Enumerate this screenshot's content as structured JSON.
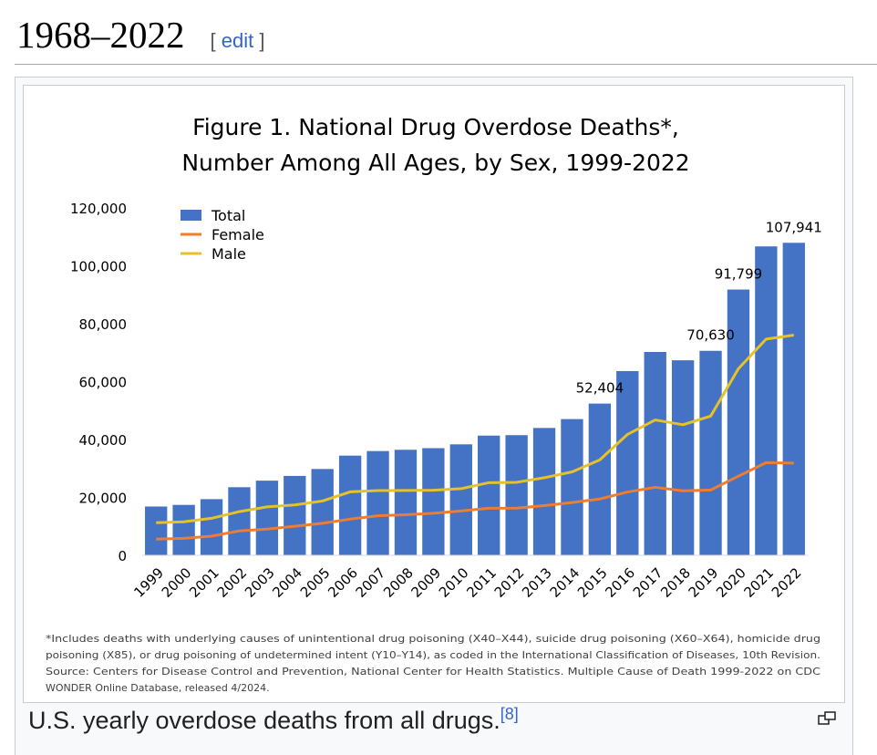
{
  "section": {
    "title": "1968–2022",
    "edit_open": "[ ",
    "edit_label": "edit",
    "edit_close": " ]"
  },
  "figure": {
    "caption": "U.S. yearly overdose deaths from all drugs.",
    "citation": "[8]",
    "magnify_icon": "magnify-clip-icon"
  },
  "chart_data": {
    "type": "bar",
    "title_line1": "Figure 1. National Drug Overdose Deaths*,",
    "title_line2": "Number Among All Ages, by Sex, 1999-2022",
    "categories": [
      "1999",
      "2000",
      "2001",
      "2002",
      "2003",
      "2004",
      "2005",
      "2006",
      "2007",
      "2008",
      "2009",
      "2010",
      "2011",
      "2012",
      "2013",
      "2014",
      "2015",
      "2016",
      "2017",
      "2018",
      "2019",
      "2020",
      "2021",
      "2022"
    ],
    "series": [
      {
        "name": "Total",
        "type": "bar",
        "color": "#4472c4",
        "values": [
          16849,
          17415,
          19394,
          23518,
          25785,
          27424,
          29813,
          34425,
          36010,
          36450,
          37004,
          38329,
          41340,
          41502,
          43982,
          47055,
          52404,
          63632,
          70237,
          67367,
          70630,
          91799,
          106699,
          107941
        ]
      },
      {
        "name": "Female",
        "type": "line",
        "color": "#ed7d31",
        "values": [
          5591,
          5849,
          6613,
          8431,
          9051,
          10035,
          11053,
          12512,
          13662,
          14033,
          14525,
          15315,
          16246,
          16288,
          17181,
          18243,
          19447,
          21868,
          23484,
          22274,
          22552,
          27347,
          32018,
          31869
        ]
      },
      {
        "name": "Male",
        "type": "line",
        "color": "#e6c229",
        "values": [
          11258,
          11566,
          12781,
          15087,
          16734,
          17389,
          18760,
          21913,
          22348,
          22417,
          22479,
          23014,
          25094,
          25214,
          26801,
          28812,
          32957,
          41764,
          46753,
          45093,
          48078,
          64452,
          74681,
          76072
        ]
      }
    ],
    "data_labels": [
      {
        "category": "2015",
        "text": "52,404"
      },
      {
        "category": "2019",
        "text": "70,630"
      },
      {
        "category": "2020",
        "text": "91,799"
      },
      {
        "category": "2022",
        "text": "107,941"
      }
    ],
    "y_ticks": [
      "0",
      "20,000",
      "40,000",
      "60,000",
      "80,000",
      "100,000",
      "120,000"
    ],
    "ylim": [
      0,
      120000
    ],
    "legend_position": "top-left",
    "footnote": [
      "*Includes deaths with underlying causes of unintentional drug poisoning (X40–X44), suicide drug poisoning (X60–X64), homicide drug",
      "poisoning (X85), or drug poisoning of undetermined intent (Y10–Y14), as coded in the International Classification of Diseases, 10th Revision.",
      "Source: Centers for Disease Control and Prevention, National Center for Health Statistics. Multiple Cause of Death 1999-2022 on CDC",
      "WONDER Online Database, released 4/2024."
    ]
  }
}
